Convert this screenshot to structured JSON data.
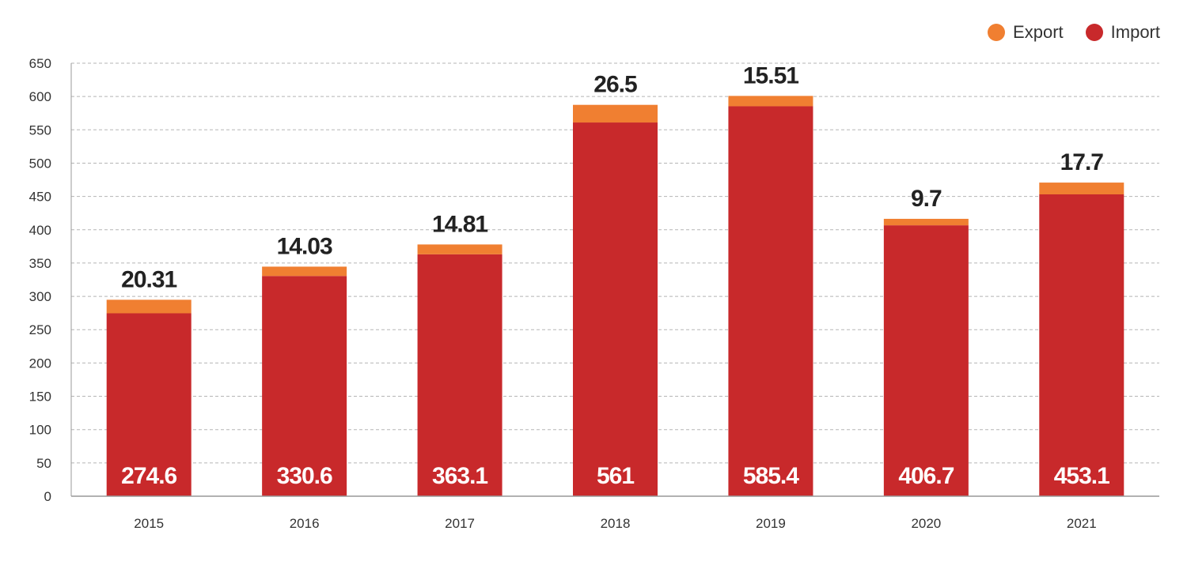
{
  "colors": {
    "export": "#f07f31",
    "import": "#c8292b",
    "grid": "#b5b5b5",
    "axis": "#999999"
  },
  "legend": {
    "export_label": "Export",
    "import_label": "Import"
  },
  "chart_data": {
    "type": "bar",
    "stacked": true,
    "categories": [
      "2015",
      "2016",
      "2017",
      "2018",
      "2019",
      "2020",
      "2021"
    ],
    "series": [
      {
        "name": "Import",
        "values": [
          274.6,
          330.6,
          363.1,
          561,
          585.4,
          406.7,
          453.1
        ],
        "labels": [
          "274.6",
          "330.6",
          "363.1",
          "561",
          "585.4",
          "406.7",
          "453.1"
        ]
      },
      {
        "name": "Export",
        "values": [
          20.31,
          14.03,
          14.81,
          26.5,
          15.51,
          9.7,
          17.7
        ],
        "labels": [
          "20.31",
          "14.03",
          "14.81",
          "26.5",
          "15.51",
          "9.7",
          "17.7"
        ]
      }
    ],
    "y_ticks": [
      "0",
      "50",
      "100",
      "150",
      "200",
      "250",
      "300",
      "350",
      "400",
      "450",
      "500",
      "550",
      "600",
      "650"
    ],
    "ylim": [
      0,
      650
    ],
    "grid": true,
    "grid_style": "dashed",
    "legend_position": "top-right"
  }
}
